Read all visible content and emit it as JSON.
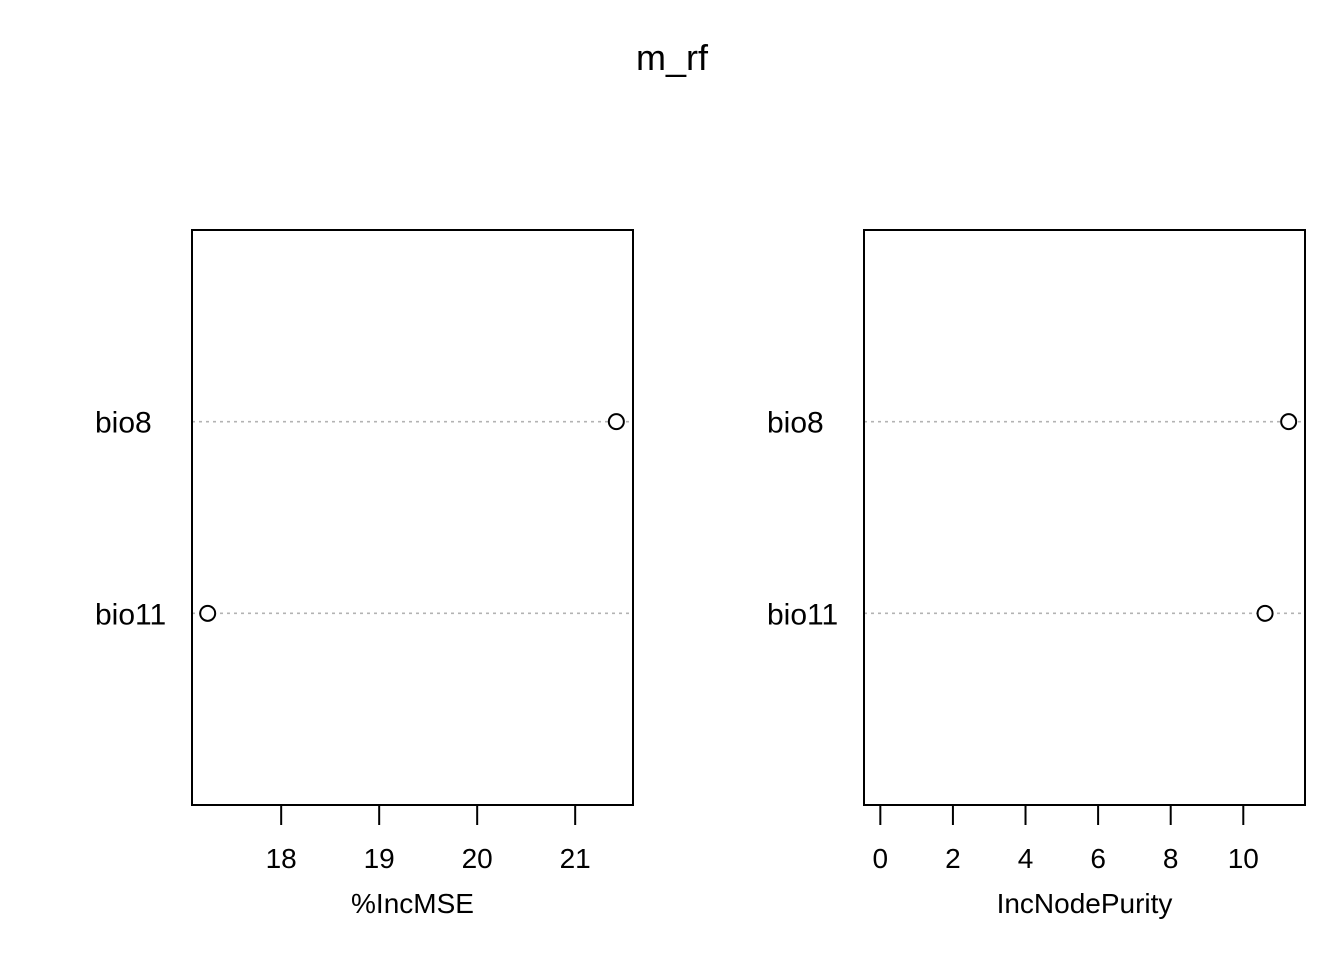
{
  "title": "m_rf",
  "chart_data": [
    {
      "type": "scatter",
      "style": "dotchart",
      "xlabel": "%IncMSE",
      "ylabel": "",
      "categories": [
        "bio11",
        "bio8"
      ],
      "values": [
        17.25,
        21.42
      ],
      "xlim": [
        17.09,
        21.59
      ],
      "xticks": [
        18,
        19,
        20,
        21
      ],
      "grid": "dotted horizontal guide per category",
      "guide_color": "#b3b3b3"
    },
    {
      "type": "scatter",
      "style": "dotchart",
      "xlabel": "IncNodePurity",
      "ylabel": "",
      "categories": [
        "bio11",
        "bio8"
      ],
      "values": [
        10.6,
        11.25
      ],
      "xlim": [
        -0.45,
        11.7
      ],
      "xticks": [
        0,
        2,
        4,
        6,
        8,
        10
      ],
      "grid": "dotted horizontal guide per category",
      "guide_color": "#b3b3b3"
    }
  ]
}
